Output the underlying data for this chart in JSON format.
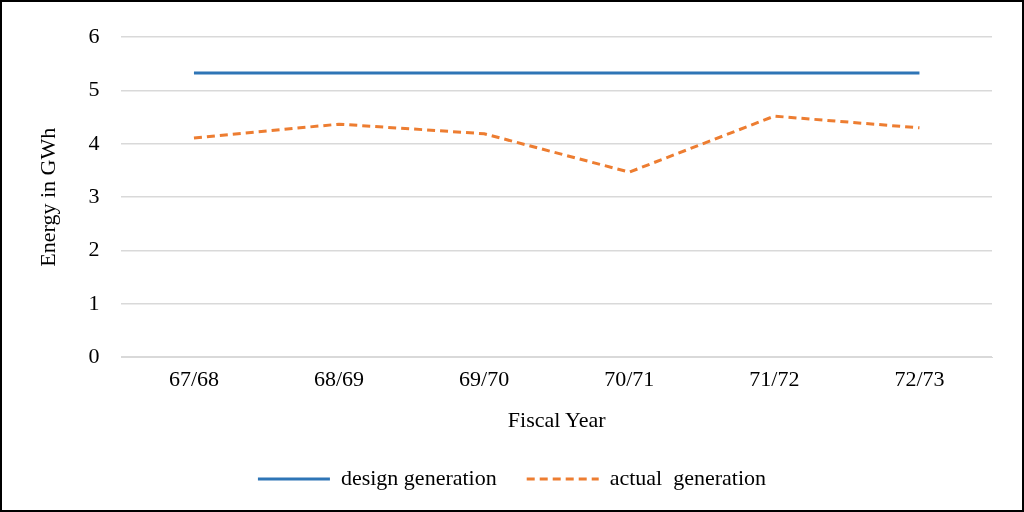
{
  "chart_data": {
    "type": "line",
    "xlabel": "Fiscal Year",
    "ylabel": "Energy in GWh",
    "categories": [
      "67/68",
      "68/69",
      "69/70",
      "70/71",
      "71/72",
      "72/73"
    ],
    "series": [
      {
        "name": "design generation",
        "color": "#2e75b6",
        "line_style": "solid",
        "values": [
          5.33,
          5.33,
          5.33,
          5.33,
          5.33,
          5.33
        ]
      },
      {
        "name": "actual  generation",
        "color": "#ed7d31",
        "line_style": "dashed",
        "values": [
          4.11,
          4.37,
          4.19,
          3.47,
          4.52,
          4.3
        ]
      }
    ],
    "ylim": [
      0,
      6
    ],
    "yticks": [
      0,
      1,
      2,
      3,
      4,
      5,
      6
    ],
    "grid": "y",
    "legend": "bottom",
    "marker": "none"
  }
}
